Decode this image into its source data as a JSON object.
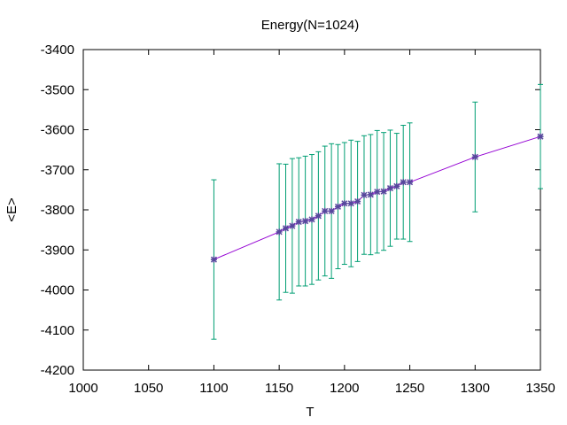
{
  "chart_data": {
    "type": "scatter",
    "title": "Energy(N=1024)",
    "xlabel": "T",
    "ylabel": "<E>",
    "xlim": [
      1000,
      1350
    ],
    "ylim": [
      -4200,
      -3400
    ],
    "xticks": [
      1000,
      1050,
      1100,
      1150,
      1200,
      1250,
      1300,
      1350
    ],
    "yticks": [
      -3400,
      -3500,
      -3600,
      -3700,
      -3800,
      -3900,
      -4000,
      -4100,
      -4200
    ],
    "grid": false,
    "legend": "none",
    "colors": {
      "line": "#9400d3",
      "errorbar": "#009e73",
      "marker": "#56489c"
    },
    "series": [
      {
        "x": [
          1100,
          1150,
          1155,
          1160,
          1165,
          1170,
          1175,
          1180,
          1185,
          1190,
          1195,
          1200,
          1205,
          1210,
          1215,
          1220,
          1225,
          1230,
          1235,
          1240,
          1245,
          1250,
          1300,
          1350
        ],
        "y": [
          -3924,
          -3855,
          -3846,
          -3840,
          -3830,
          -3828,
          -3824,
          -3815,
          -3803,
          -3803,
          -3792,
          -3784,
          -3784,
          -3779,
          -3763,
          -3762,
          -3755,
          -3754,
          -3746,
          -3741,
          -3731,
          -3731,
          -3668,
          -3617
        ],
        "err": [
          199,
          170,
          160,
          168,
          160,
          162,
          162,
          160,
          162,
          168,
          155,
          152,
          158,
          150,
          148,
          150,
          153,
          147,
          145,
          132,
          142,
          148,
          137,
          130
        ]
      }
    ]
  }
}
